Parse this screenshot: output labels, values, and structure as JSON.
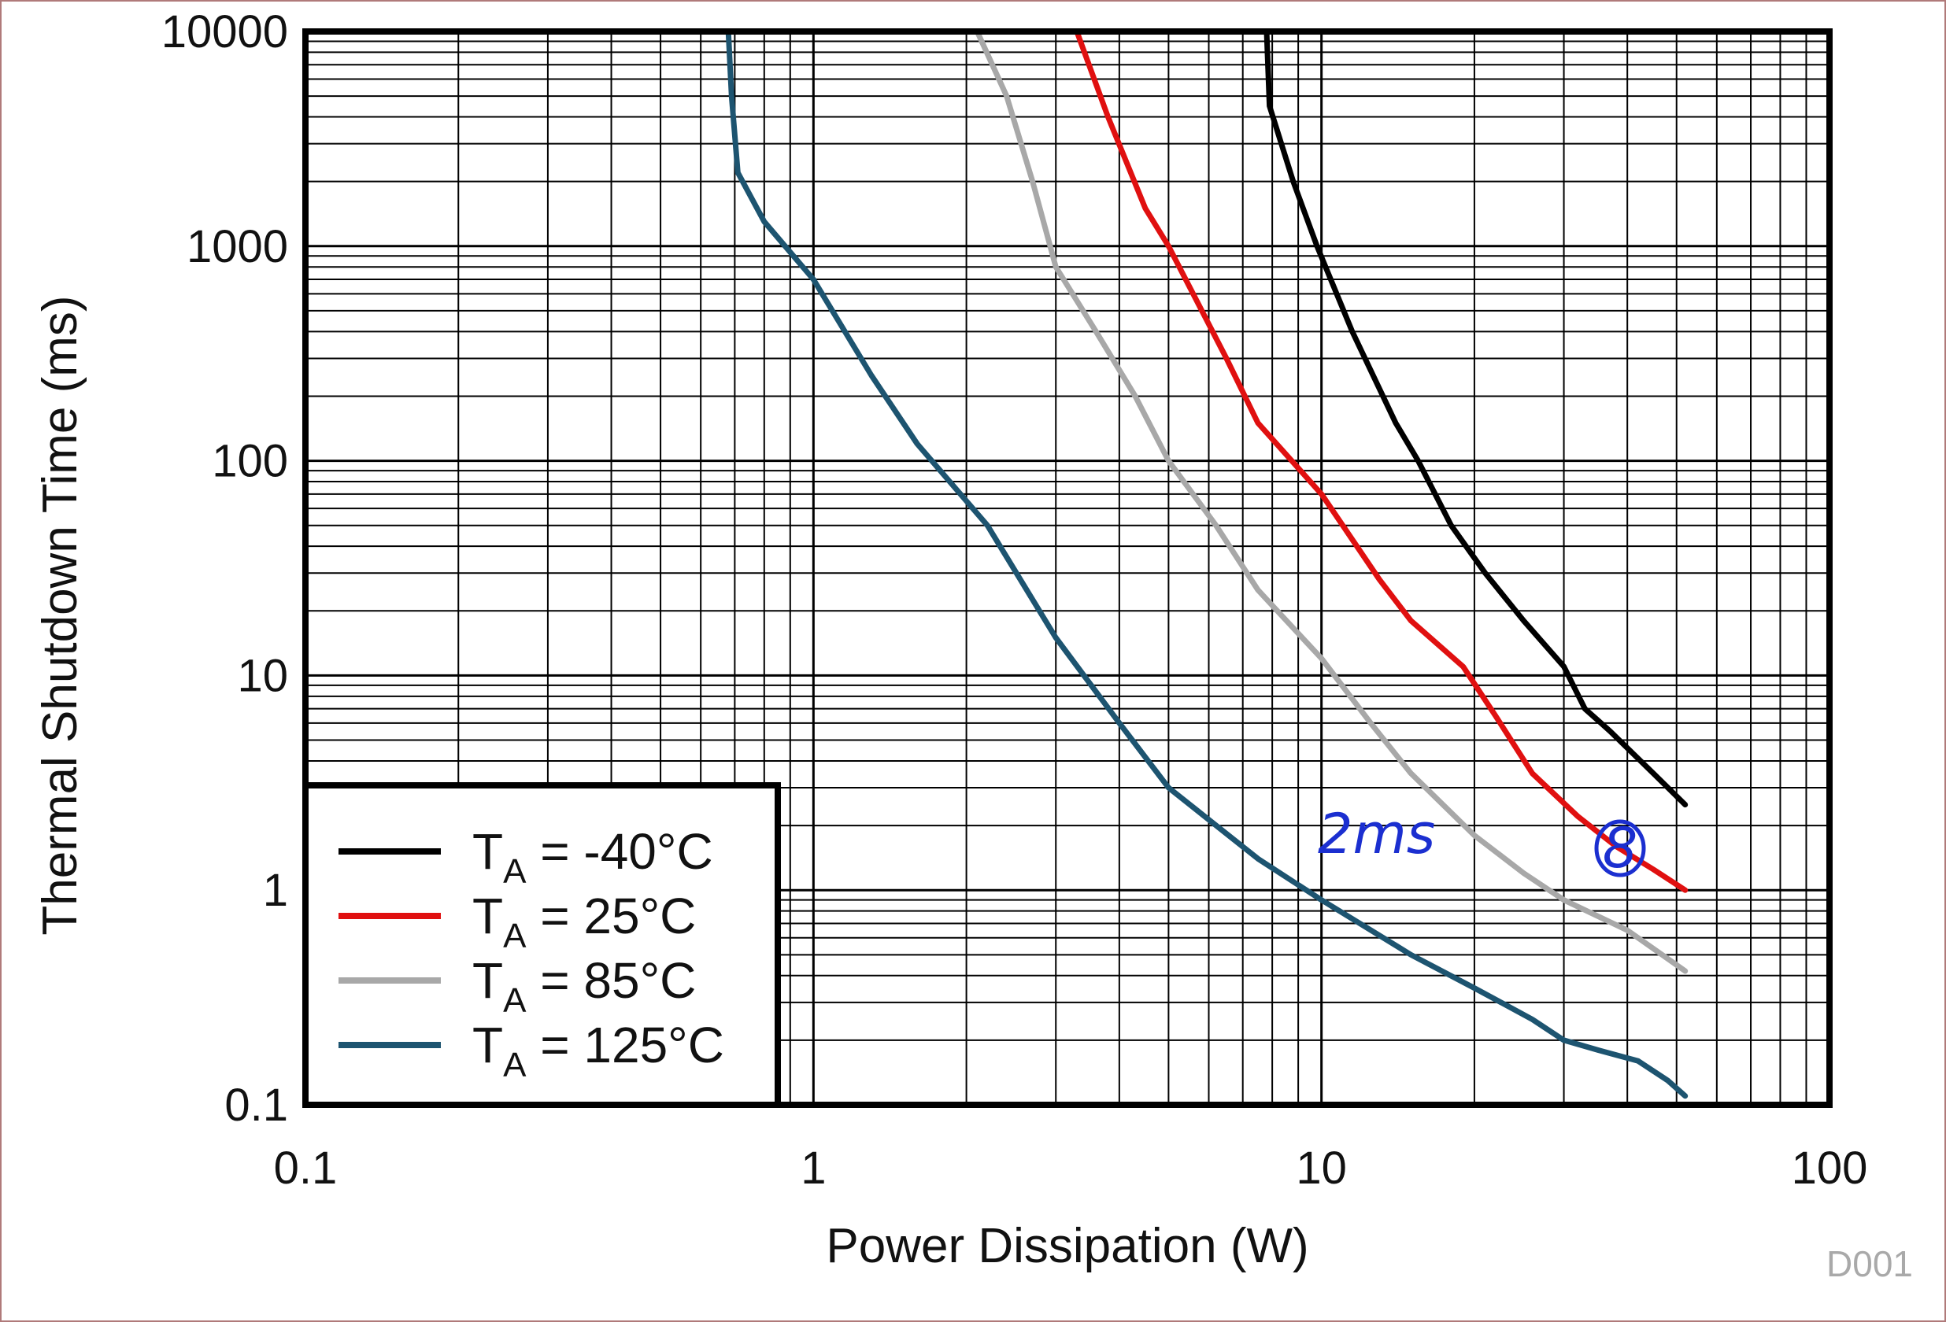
{
  "chart_data": {
    "type": "line",
    "title": "",
    "xlabel": "Power Dissipation (W)",
    "ylabel": "Thermal Shutdown Time (ms)",
    "xscale": "log",
    "yscale": "log",
    "xlim": [
      0.1,
      100
    ],
    "ylim": [
      0.1,
      10000
    ],
    "x_ticks": [
      0.1,
      1,
      10,
      100
    ],
    "x_tick_labels": [
      "0.1",
      "1",
      "10",
      "100"
    ],
    "y_ticks": [
      0.1,
      1,
      10,
      100,
      1000,
      10000
    ],
    "y_tick_labels": [
      "0.1",
      "1",
      "10",
      "100",
      "1000",
      "10000"
    ],
    "grid": true,
    "legend_position": "bottom-left",
    "series": [
      {
        "name": "T_A = -40°C",
        "name_main": "T",
        "name_sub": "A",
        "name_rest": " = -40°C",
        "color": "#000000",
        "points": [
          [
            7.8,
            10000
          ],
          [
            7.9,
            4500
          ],
          [
            8.8,
            2000
          ],
          [
            9.8,
            1000
          ],
          [
            11.5,
            400
          ],
          [
            14,
            150
          ],
          [
            15.5,
            100
          ],
          [
            18,
            50
          ],
          [
            21,
            30
          ],
          [
            25,
            18
          ],
          [
            30,
            11
          ],
          [
            33,
            7
          ],
          [
            37,
            5.5
          ],
          [
            45,
            3.5
          ],
          [
            52,
            2.5
          ]
        ]
      },
      {
        "name": "T_A = 25°C",
        "name_main": "T",
        "name_sub": "A",
        "name_rest": " = 25°C",
        "color": "#e01010",
        "points": [
          [
            3.3,
            10000
          ],
          [
            3.8,
            4000
          ],
          [
            4.5,
            1500
          ],
          [
            5,
            1000
          ],
          [
            6.5,
            300
          ],
          [
            7.5,
            150
          ],
          [
            10,
            70
          ],
          [
            13,
            28
          ],
          [
            15,
            18
          ],
          [
            19,
            11
          ],
          [
            22,
            6.5
          ],
          [
            26,
            3.5
          ],
          [
            32,
            2.2
          ],
          [
            38,
            1.6
          ],
          [
            45,
            1.25
          ],
          [
            52,
            1.0
          ]
        ]
      },
      {
        "name": "T_A = 85°C",
        "name_main": "T",
        "name_sub": "A",
        "name_rest": " = 85°C",
        "color": "#a8a8a8",
        "points": [
          [
            2.1,
            10000
          ],
          [
            2.4,
            5000
          ],
          [
            2.7,
            2000
          ],
          [
            3,
            800
          ],
          [
            3.6,
            400
          ],
          [
            4.3,
            200
          ],
          [
            5,
            100
          ],
          [
            6.2,
            50
          ],
          [
            7.5,
            25
          ],
          [
            10,
            12
          ],
          [
            12.5,
            6
          ],
          [
            15,
            3.5
          ],
          [
            20,
            1.8
          ],
          [
            25,
            1.2
          ],
          [
            30,
            0.9
          ],
          [
            40,
            0.65
          ],
          [
            52,
            0.42
          ]
        ]
      },
      {
        "name": "T_A = 125°C",
        "name_main": "T",
        "name_sub": "A",
        "name_rest": " = 125°C",
        "color": "#1d5470",
        "points": [
          [
            0.68,
            10000
          ],
          [
            0.69,
            5000
          ],
          [
            0.71,
            2200
          ],
          [
            0.8,
            1300
          ],
          [
            1,
            700
          ],
          [
            1.3,
            250
          ],
          [
            1.6,
            120
          ],
          [
            2.2,
            50
          ],
          [
            3,
            15
          ],
          [
            4,
            6
          ],
          [
            5,
            3
          ],
          [
            7.5,
            1.4
          ],
          [
            10,
            0.9
          ],
          [
            15,
            0.5
          ],
          [
            20,
            0.35
          ],
          [
            26,
            0.25
          ],
          [
            30,
            0.2
          ],
          [
            35,
            0.18
          ],
          [
            42,
            0.16
          ],
          [
            48,
            0.13
          ],
          [
            52,
            0.11
          ]
        ]
      }
    ],
    "annotations": [
      "2ms",
      "8"
    ],
    "watermark": "D001"
  }
}
